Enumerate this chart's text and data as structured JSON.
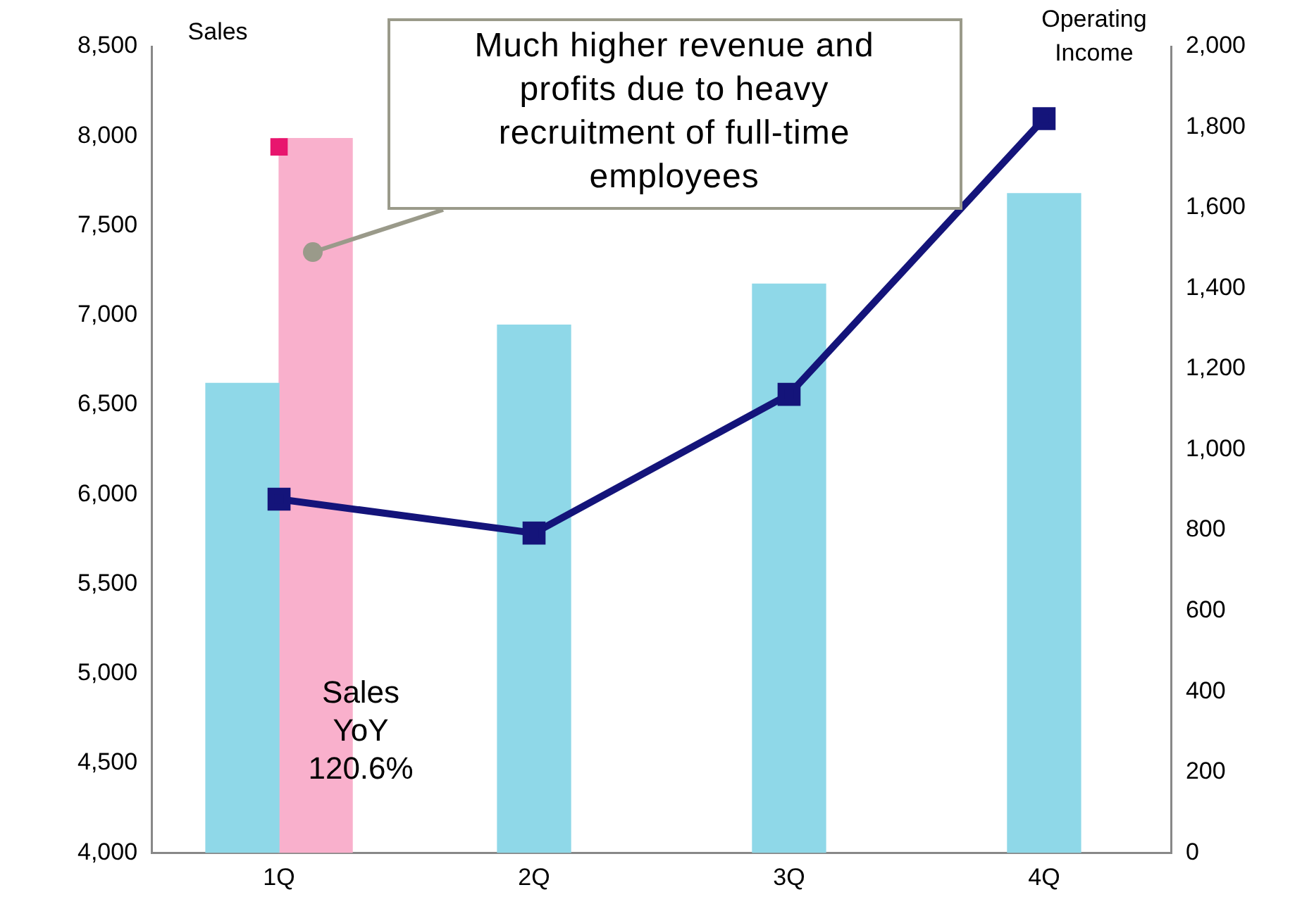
{
  "chart_data": {
    "type": "bar",
    "categories": [
      "1Q",
      "2Q",
      "3Q",
      "4Q"
    ],
    "series": [
      {
        "color": "#8fd8e8",
        "values": [
          6620,
          6945,
          7174,
          7679
        ]
      },
      {
        "color": "#f9b0cc",
        "values": [
          7987,
          null,
          null,
          null
        ]
      },
      {
        "type": "line",
        "axis": "y2",
        "color": "#14147a",
        "values": [
          877,
          793,
          1137,
          1821
        ]
      },
      {
        "type": "scatter",
        "axis": "y2",
        "color": "#e8156e",
        "x": [
          "1Q"
        ],
        "values": [
          1751
        ]
      }
    ],
    "ylabel": "Sales",
    "y2label": "Operating Income",
    "ylim": [
      4000,
      8500
    ],
    "yticks": [
      {
        "value": 4000,
        "label": "4,000"
      },
      {
        "value": 4500,
        "label": "4,500"
      },
      {
        "value": 5000,
        "label": "5,000"
      },
      {
        "value": 5500,
        "label": "5,500"
      },
      {
        "value": 6000,
        "label": "6,000"
      },
      {
        "value": 6500,
        "label": "6,500"
      },
      {
        "value": 7000,
        "label": "7,000"
      },
      {
        "value": 7500,
        "label": "7,500"
      },
      {
        "value": 8000,
        "label": "8,000"
      },
      {
        "value": 8500,
        "label": "8,500"
      }
    ],
    "y2lim": [
      0,
      2000
    ],
    "y2ticks": [
      0,
      200,
      400,
      600,
      800,
      {
        "value": 1000,
        "label": "1,000"
      },
      {
        "value": 1200,
        "label": "1,200"
      },
      {
        "value": 1400,
        "label": "1,400"
      },
      {
        "value": 1600,
        "label": "1,600"
      },
      {
        "value": 1800,
        "label": "1,800"
      },
      {
        "value": 2000,
        "label": "2,000"
      }
    ],
    "annotations": [
      "Much higher revenue and profits due to heavy recruitment of full-time employees",
      {
        "text": "Sales YoY 120.6%",
        "x": "1Q",
        "y": 4500
      }
    ],
    "marker": "square",
    "line_style": "solid",
    "grid": false,
    "legend": false
  }
}
